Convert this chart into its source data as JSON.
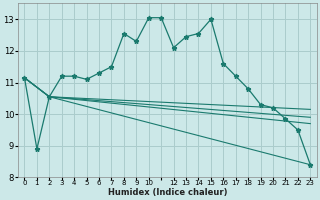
{
  "xlabel": "Humidex (Indice chaleur)",
  "bg_color": "#cce8e8",
  "grid_color": "#aacccc",
  "line_color": "#1a7a6e",
  "xlim": [
    -0.5,
    23.5
  ],
  "ylim": [
    8,
    13.5
  ],
  "yticks": [
    8,
    9,
    10,
    11,
    12,
    13
  ],
  "xtick_positions": [
    0,
    1,
    2,
    3,
    4,
    5,
    6,
    7,
    8,
    9,
    10,
    11,
    12,
    13,
    14,
    15,
    16,
    17,
    18,
    19,
    20,
    21,
    22,
    23
  ],
  "xtick_labels": [
    "0",
    "1",
    "2",
    "3",
    "4",
    "5",
    "6",
    "7",
    "8",
    "9",
    "10",
    "",
    "12",
    "13",
    "14",
    "15",
    "16",
    "17",
    "18",
    "19",
    "20",
    "21",
    "22",
    "23"
  ],
  "line1_x": [
    0,
    1,
    2,
    3,
    4,
    5,
    6,
    7,
    8,
    9,
    10,
    11,
    12,
    13,
    14,
    15,
    16,
    17,
    18,
    19,
    20,
    21,
    22,
    23
  ],
  "line1_y": [
    11.15,
    8.9,
    10.55,
    11.2,
    11.2,
    11.1,
    11.3,
    11.5,
    12.55,
    12.3,
    13.05,
    13.05,
    12.1,
    12.45,
    12.55,
    13.0,
    11.6,
    11.2,
    10.8,
    10.3,
    10.2,
    9.85,
    9.5,
    8.4
  ],
  "line2_x": [
    0,
    2,
    23
  ],
  "line2_y": [
    11.15,
    10.55,
    8.4
  ],
  "line3_x": [
    0,
    2,
    23
  ],
  "line3_y": [
    11.15,
    10.55,
    10.15
  ],
  "line4_x": [
    0,
    2,
    23
  ],
  "line4_y": [
    11.15,
    10.55,
    9.9
  ],
  "line5_x": [
    0,
    2,
    23
  ],
  "line5_y": [
    11.15,
    10.55,
    9.7
  ]
}
